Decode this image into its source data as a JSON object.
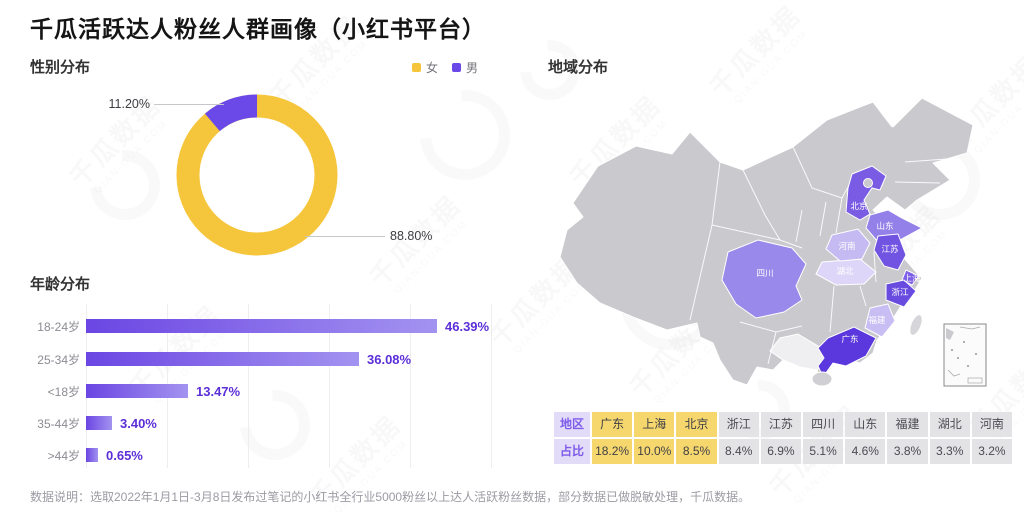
{
  "title": "千瓜活跃达人粉丝人群画像（小红书平台）",
  "footer": "数据说明：选取2022年1月1日-3月8日发布过笔记的小红书全行业5000粉丝以上达人活跃粉丝数据，部分数据已做脱敏处理，千瓜数据。",
  "watermark": {
    "cn": "千瓜数据",
    "en": "QIAN-GUA.COM"
  },
  "colors": {
    "female_yellow": "#F5C63B",
    "male_purple": "#6B48E8",
    "bar_gradient_from": "#6B46E3",
    "bar_gradient_to": "#A393F0",
    "bar_value_label": "#5B2ED8",
    "table_highlight": "#F6D76E",
    "table_header": "#E2DCF9",
    "table_cell": "#E3E3E6",
    "map_base_gray": "#C9C9CE"
  },
  "gender": {
    "section_title": "性别分布",
    "legend": [
      {
        "label": "女",
        "color": "#F5C63B"
      },
      {
        "label": "男",
        "color": "#6B48E8"
      }
    ],
    "female_pct": "88.80%",
    "male_pct": "11.20%"
  },
  "age": {
    "section_title": "年龄分布"
  },
  "region": {
    "section_title": "地域分布",
    "provinces": [
      {
        "name": "北京",
        "color": "#7A5CE4"
      },
      {
        "name": "山东",
        "color": "#9380E8"
      },
      {
        "name": "江苏",
        "color": "#7254E2"
      },
      {
        "name": "上海",
        "color": "#7E60E6"
      },
      {
        "name": "浙江",
        "color": "#6A4BE0"
      },
      {
        "name": "福建",
        "color": "#C9BEF4"
      },
      {
        "name": "广东",
        "color": "#5B38DD"
      },
      {
        "name": "四川",
        "color": "#9989EA"
      },
      {
        "name": "湖北",
        "color": "#DDD6F8"
      },
      {
        "name": "河南",
        "color": "#C6BAF2"
      }
    ]
  },
  "chart_data": [
    {
      "type": "pie",
      "donut": true,
      "title": "性别分布",
      "labels": [
        "女",
        "男"
      ],
      "values": [
        88.8,
        11.2
      ],
      "data_labels": [
        "88.80%",
        "11.20%"
      ],
      "colors": [
        "#F5C63B",
        "#6B48E8"
      ],
      "legend_position": "top-right"
    },
    {
      "type": "bar",
      "orientation": "horizontal",
      "title": "年龄分布",
      "categories": [
        "18-24岁",
        "25-34岁",
        "<18岁",
        "35-44岁",
        ">44岁"
      ],
      "values": [
        46.39,
        36.08,
        13.47,
        3.4,
        0.65
      ],
      "data_labels": [
        "46.39%",
        "36.08%",
        "13.47%",
        "3.40%",
        "0.65%"
      ],
      "unit": "%",
      "xlim": [
        0,
        50
      ],
      "grid": true
    },
    {
      "type": "table",
      "title": "地域分布",
      "row_headers": [
        "地区",
        "占比"
      ],
      "categories": [
        "广东",
        "上海",
        "北京",
        "浙江",
        "江苏",
        "四川",
        "山东",
        "福建",
        "湖北",
        "河南"
      ],
      "values": [
        18.2,
        10.0,
        8.5,
        8.4,
        6.9,
        5.1,
        4.6,
        3.8,
        3.3,
        3.2
      ],
      "value_labels": [
        "18.2%",
        "10.0%",
        "8.5%",
        "8.4%",
        "6.9%",
        "5.1%",
        "4.6%",
        "3.8%",
        "3.3%",
        "3.2%"
      ],
      "highlighted": [
        "广东",
        "上海",
        "北京"
      ]
    }
  ]
}
